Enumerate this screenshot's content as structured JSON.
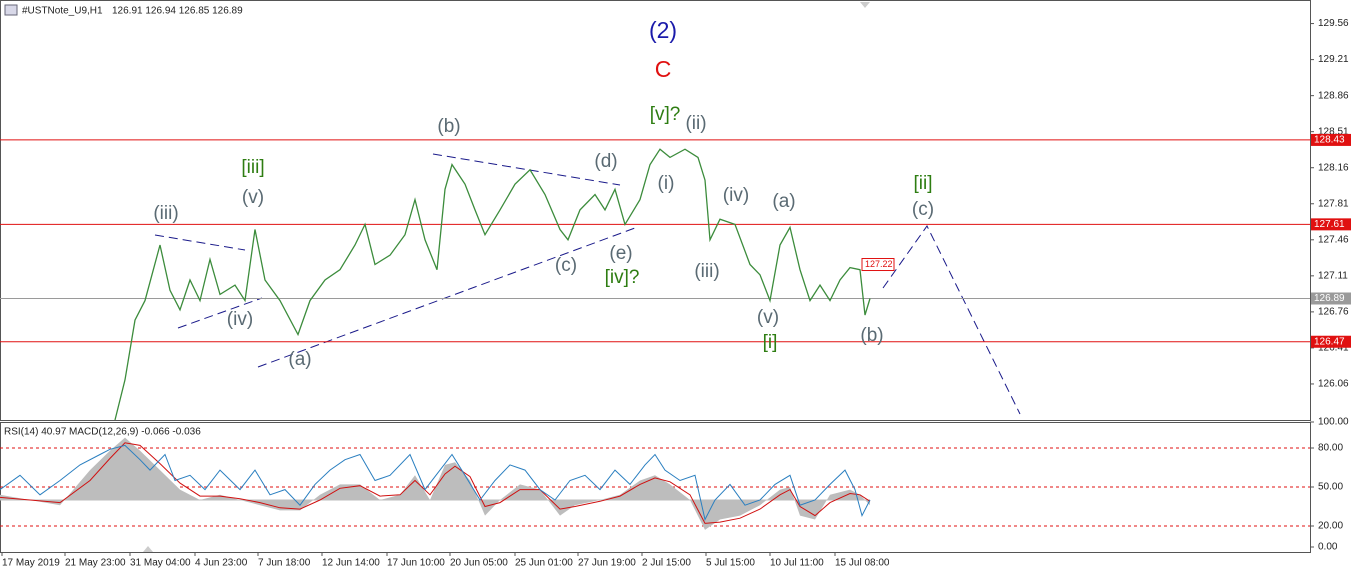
{
  "chart_data": [
    {
      "type": "line",
      "title": "#USTNote_U9,H1",
      "subtitle": "126.91 126.94 126.85 126.89",
      "xlim": [
        0,
        1310
      ],
      "ylim": [
        125.71,
        129.75
      ],
      "yticks": [
        129.56,
        129.21,
        128.86,
        128.51,
        128.16,
        127.81,
        127.46,
        127.11,
        126.76,
        126.41,
        126.06
      ],
      "color": "#3c8c3c",
      "x": [
        115,
        125,
        135,
        145,
        160,
        170,
        180,
        190,
        200,
        210,
        220,
        235,
        245,
        255,
        265,
        280,
        298,
        310,
        325,
        340,
        355,
        365,
        375,
        390,
        405,
        415,
        425,
        437,
        445,
        452,
        465,
        475,
        485,
        500,
        515,
        530,
        545,
        560,
        568,
        580,
        595,
        605,
        615,
        625,
        640,
        650,
        660,
        670,
        685,
        698,
        705,
        710,
        720,
        735,
        750,
        760,
        770,
        780,
        790,
        800,
        810,
        820,
        830,
        840,
        850,
        860,
        865,
        870
      ],
      "values": [
        125.71,
        126.1,
        126.68,
        126.87,
        127.41,
        126.97,
        126.78,
        127.07,
        126.87,
        127.27,
        126.93,
        127.02,
        126.87,
        127.56,
        127.07,
        126.87,
        126.54,
        126.87,
        127.07,
        127.17,
        127.41,
        127.61,
        127.22,
        127.31,
        127.51,
        127.85,
        127.46,
        127.17,
        127.95,
        128.19,
        128.0,
        127.75,
        127.51,
        127.75,
        128.0,
        128.14,
        127.9,
        127.56,
        127.46,
        127.75,
        127.9,
        127.75,
        127.95,
        127.61,
        127.85,
        128.19,
        128.34,
        128.26,
        128.34,
        128.26,
        128.04,
        127.46,
        127.66,
        127.61,
        127.22,
        127.12,
        126.87,
        127.41,
        127.58,
        127.17,
        126.87,
        127.02,
        126.87,
        127.07,
        127.19,
        127.17,
        126.73,
        126.89
      ],
      "levels": [
        {
          "value": 128.43,
          "color": "#e01010"
        },
        {
          "value": 127.61,
          "color": "#e01010"
        },
        {
          "value": 126.47,
          "color": "#e01010"
        },
        {
          "value": 126.89,
          "color": "#9a9a9a"
        }
      ],
      "marker": {
        "value": 127.22,
        "color": "#e01010"
      },
      "annotations": [
        {
          "text": "(2)",
          "color": "#1a1aaa"
        },
        {
          "text": "C",
          "color": "#e01010"
        },
        {
          "text": "[v]?",
          "color": "#2e7d12"
        },
        {
          "text": "(ii)",
          "color": "#5a6a73"
        },
        {
          "text": "(b)",
          "color": "#5a6a73"
        },
        {
          "text": "[iii]",
          "color": "#2e7d12"
        },
        {
          "text": "(v)",
          "color": "#5a6a73"
        },
        {
          "text": "(iii)",
          "color": "#5a6a73"
        },
        {
          "text": "(d)",
          "color": "#5a6a73"
        },
        {
          "text": "(i)",
          "color": "#5a6a73"
        },
        {
          "text": "(iv)",
          "color": "#5a6a73"
        },
        {
          "text": "(a)",
          "color": "#5a6a73"
        },
        {
          "text": "[ii]",
          "color": "#2e7d12"
        },
        {
          "text": "(c)",
          "color": "#5a6a73"
        },
        {
          "text": "(e)",
          "color": "#5a6a73"
        },
        {
          "text": "(c)",
          "color": "#5a6a73"
        },
        {
          "text": "[iv]?",
          "color": "#2e7d12"
        },
        {
          "text": "(iii)",
          "color": "#5a6a73"
        },
        {
          "text": "(iv)",
          "color": "#5a6a73"
        },
        {
          "text": "(v)",
          "color": "#5a6a73"
        },
        {
          "text": "[i]",
          "color": "#2e7d12"
        },
        {
          "text": "(b)",
          "color": "#5a6a73"
        },
        {
          "text": "(a)",
          "color": "#5a6a73"
        }
      ]
    },
    {
      "type": "indicator",
      "title": "RSI(14) 40.97 MACD(12,26,9) -0.066 -0.036",
      "xlim": [
        0,
        1310
      ],
      "ylim": [
        0,
        100
      ],
      "yticks": [
        {
          "value": 100,
          "label": "100.00"
        },
        {
          "value": 80,
          "label": "80.00"
        },
        {
          "value": 50,
          "label": "50.00"
        },
        {
          "value": 20,
          "label": "20.00"
        },
        {
          "value": 0,
          "label": "0.00"
        }
      ],
      "hlines": [
        80,
        50,
        20
      ],
      "hline_color": "#e01010",
      "xticks": [
        {
          "value": 2,
          "label": "17 May 2019"
        },
        {
          "value": 65,
          "label": "21 May 23:00"
        },
        {
          "value": 130,
          "label": "31 May 04:00"
        },
        {
          "value": 195,
          "label": "4 Jun 23:00"
        },
        {
          "value": 258,
          "label": "7 Jun 18:00"
        },
        {
          "value": 322,
          "label": "12 Jun 14:00"
        },
        {
          "value": 387,
          "label": "17 Jun 10:00"
        },
        {
          "value": 450,
          "label": "20 Jun 05:00"
        },
        {
          "value": 515,
          "label": "25 Jun 01:00"
        },
        {
          "value": 578,
          "label": "27 Jun 19:00"
        },
        {
          "value": 642,
          "label": "2 Jul 15:00"
        },
        {
          "value": 706,
          "label": "5 Jul 15:00"
        },
        {
          "value": 770,
          "label": "10 Jul 11:00"
        },
        {
          "value": 835,
          "label": "15 Jul 08:00"
        }
      ],
      "series": [
        {
          "kind": "area",
          "color": "#bdbdbd",
          "baseline": 40,
          "x": [
            0,
            60,
            90,
            110,
            125,
            140,
            160,
            180,
            200,
            220,
            240,
            260,
            280,
            300,
            320,
            340,
            360,
            380,
            400,
            415,
            430,
            445,
            455,
            470,
            485,
            500,
            520,
            540,
            560,
            575,
            600,
            620,
            640,
            655,
            670,
            690,
            705,
            720,
            740,
            760,
            780,
            790,
            800,
            815,
            830,
            850,
            860,
            870
          ],
          "values": [
            44,
            36,
            63,
            78,
            88,
            78,
            63,
            48,
            40,
            44,
            40,
            36,
            32,
            32,
            44,
            52,
            52,
            40,
            44,
            59,
            40,
            67,
            69,
            55,
            28,
            40,
            52,
            48,
            28,
            36,
            40,
            44,
            55,
            59,
            52,
            40,
            17,
            25,
            28,
            36,
            48,
            50,
            28,
            25,
            44,
            48,
            44,
            36
          ]
        },
        {
          "kind": "line",
          "color": "#d01010",
          "x": [
            0,
            60,
            90,
            110,
            125,
            140,
            160,
            180,
            200,
            220,
            240,
            260,
            280,
            300,
            320,
            340,
            360,
            380,
            400,
            415,
            430,
            445,
            455,
            470,
            485,
            500,
            520,
            540,
            560,
            575,
            600,
            620,
            640,
            655,
            670,
            690,
            705,
            720,
            740,
            760,
            780,
            790,
            800,
            815,
            830,
            850,
            860,
            870
          ],
          "values": [
            42,
            38,
            55,
            72,
            84,
            82,
            68,
            53,
            43,
            43,
            41,
            38,
            34,
            33,
            40,
            49,
            51,
            43,
            44,
            55,
            44,
            60,
            66,
            58,
            35,
            38,
            48,
            48,
            33,
            35,
            39,
            43,
            52,
            57,
            54,
            44,
            22,
            23,
            26,
            33,
            44,
            48,
            35,
            28,
            38,
            45,
            44,
            39
          ]
        },
        {
          "kind": "line",
          "color": "#2a7fc0",
          "x": [
            0,
            20,
            40,
            60,
            80,
            100,
            110,
            125,
            140,
            150,
            165,
            175,
            190,
            205,
            220,
            240,
            255,
            270,
            285,
            300,
            315,
            330,
            345,
            360,
            375,
            390,
            410,
            425,
            440,
            452,
            465,
            480,
            495,
            510,
            525,
            540,
            555,
            570,
            585,
            600,
            615,
            630,
            645,
            655,
            665,
            680,
            695,
            705,
            715,
            730,
            745,
            760,
            775,
            790,
            800,
            815,
            830,
            845,
            855,
            862,
            870
          ],
          "values": [
            48,
            59,
            44,
            55,
            67,
            75,
            79,
            82,
            71,
            63,
            75,
            55,
            59,
            48,
            63,
            48,
            63,
            44,
            48,
            36,
            52,
            63,
            71,
            75,
            55,
            59,
            75,
            48,
            63,
            75,
            59,
            40,
            55,
            67,
            63,
            48,
            40,
            55,
            59,
            48,
            63,
            52,
            67,
            75,
            63,
            55,
            59,
            25,
            40,
            52,
            36,
            40,
            52,
            59,
            36,
            40,
            52,
            63,
            48,
            28,
            40
          ]
        }
      ]
    }
  ]
}
